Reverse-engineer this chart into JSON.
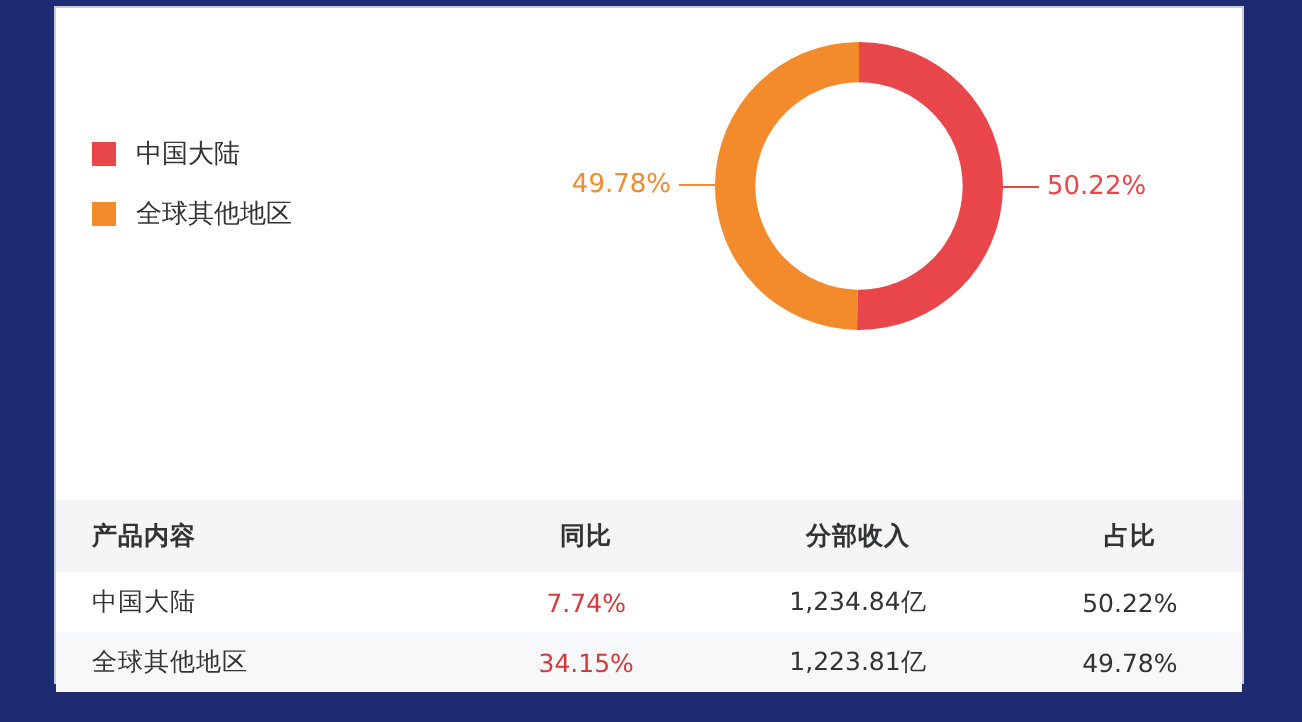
{
  "chart_data": {
    "type": "donut",
    "categories": [
      "中国大陆",
      "全球其他地区"
    ],
    "values": [
      50.22,
      49.78
    ],
    "colors": [
      "#e8464a",
      "#f38a2c"
    ],
    "legend": "left",
    "value_labels": [
      "50.22%",
      "49.78%"
    ],
    "annotations": [
      "产品内容",
      "同比",
      "分部收入",
      "占比",
      "中国大陆",
      "7.74%",
      "1,234.84亿",
      "50.22%",
      "全球其他地区",
      "34.15%",
      "1,223.81亿",
      "49.78%"
    ]
  }
}
